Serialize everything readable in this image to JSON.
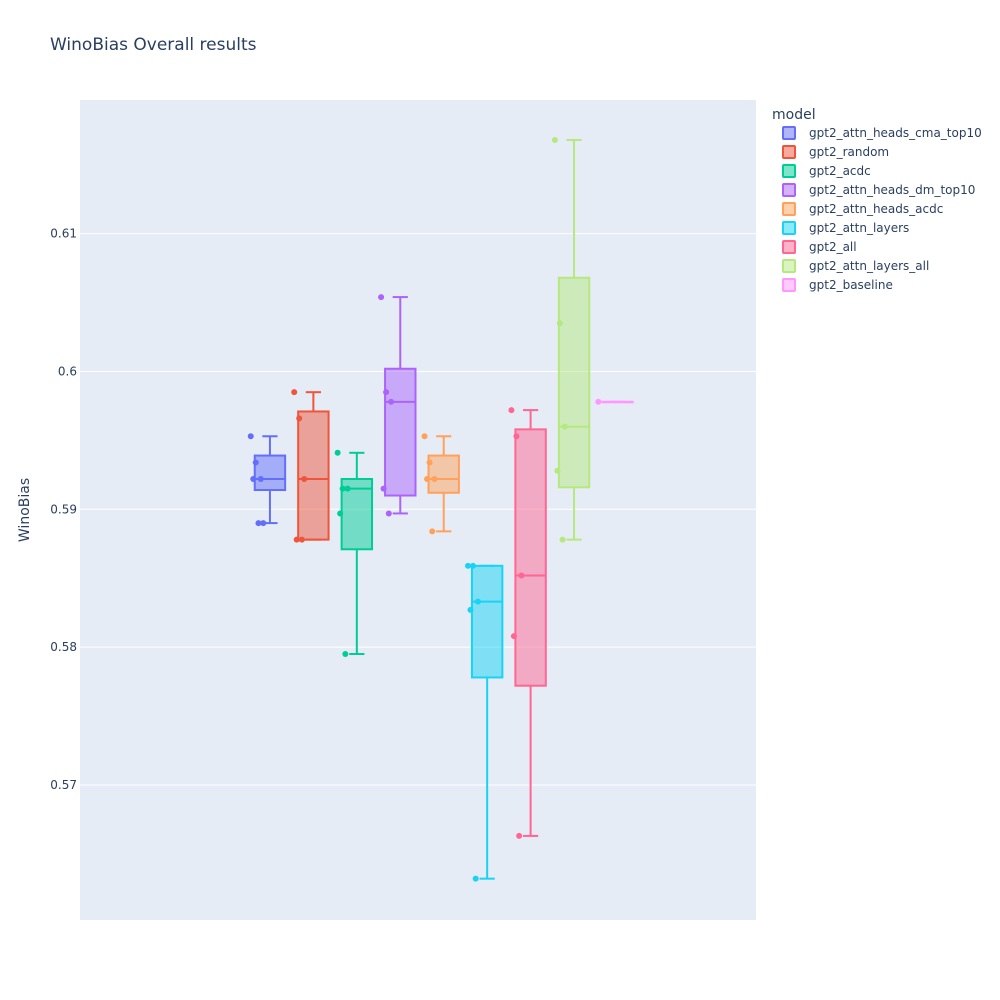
{
  "chart_data": {
    "type": "box",
    "title": "WinoBias Overall results",
    "ylabel": "WinoBias",
    "xlabel": "",
    "ylim": [
      0.5602,
      0.6197
    ],
    "yticks": [
      0.57,
      0.58,
      0.59,
      0.6,
      0.61
    ],
    "ytick_labels": [
      "0.57",
      "0.58",
      "0.59",
      "0.6",
      "0.61"
    ],
    "grid": true,
    "legend_title": "model",
    "legend_position": "top-right",
    "boxpoints": "all",
    "series": [
      {
        "name": "gpt2_attn_heads_cma_top10",
        "color": "#636efa",
        "points": [
          0.5953,
          0.5934,
          0.5922,
          0.5922,
          0.589,
          0.589
        ],
        "stats": {
          "min": 0.589,
          "q1": 0.5914,
          "median": 0.5922,
          "q3": 0.5939,
          "max": 0.5953
        }
      },
      {
        "name": "gpt2_random",
        "color": "#ef553b",
        "points": [
          0.5985,
          0.5966,
          0.5922,
          0.5878,
          0.5878
        ],
        "stats": {
          "min": 0.5878,
          "q1": 0.5878,
          "median": 0.5922,
          "q3": 0.5971,
          "max": 0.5985
        }
      },
      {
        "name": "gpt2_acdc",
        "color": "#00cc96",
        "points": [
          0.5941,
          0.5915,
          0.5915,
          0.5897,
          0.5795
        ],
        "stats": {
          "min": 0.5795,
          "q1": 0.5871,
          "median": 0.5915,
          "q3": 0.5922,
          "max": 0.5941
        }
      },
      {
        "name": "gpt2_attn_heads_dm_top10",
        "color": "#ab63fa",
        "points": [
          0.6054,
          0.5985,
          0.5978,
          0.5915,
          0.5897
        ],
        "stats": {
          "min": 0.5897,
          "q1": 0.591,
          "median": 0.5978,
          "q3": 0.6002,
          "max": 0.6054
        }
      },
      {
        "name": "gpt2_attn_heads_acdc",
        "color": "#ffa15a",
        "points": [
          0.5953,
          0.5934,
          0.5922,
          0.5922,
          0.5884
        ],
        "stats": {
          "min": 0.5884,
          "q1": 0.5912,
          "median": 0.5922,
          "q3": 0.5939,
          "max": 0.5953
        }
      },
      {
        "name": "gpt2_attn_layers",
        "color": "#19d3f3",
        "points": [
          0.5859,
          0.5859,
          0.5833,
          0.5827,
          0.5632
        ],
        "stats": {
          "min": 0.5632,
          "q1": 0.5778,
          "median": 0.5833,
          "q3": 0.5859,
          "max": 0.5859
        }
      },
      {
        "name": "gpt2_all",
        "color": "#ff6692",
        "points": [
          0.5972,
          0.5953,
          0.5852,
          0.5808,
          0.5663
        ],
        "stats": {
          "min": 0.5663,
          "q1": 0.5772,
          "median": 0.5852,
          "q3": 0.5958,
          "max": 0.5972
        }
      },
      {
        "name": "gpt2_attn_layers_all",
        "color": "#b6e880",
        "points": [
          0.6168,
          0.6035,
          0.596,
          0.5928,
          0.5878
        ],
        "stats": {
          "min": 0.5878,
          "q1": 0.5916,
          "median": 0.596,
          "q3": 0.6068,
          "max": 0.6168
        }
      },
      {
        "name": "gpt2_baseline",
        "color": "#ff97ff",
        "points": [
          0.5978
        ],
        "stats": {
          "min": 0.5978,
          "q1": 0.5978,
          "median": 0.5978,
          "q3": 0.5978,
          "max": 0.5978
        }
      }
    ]
  }
}
